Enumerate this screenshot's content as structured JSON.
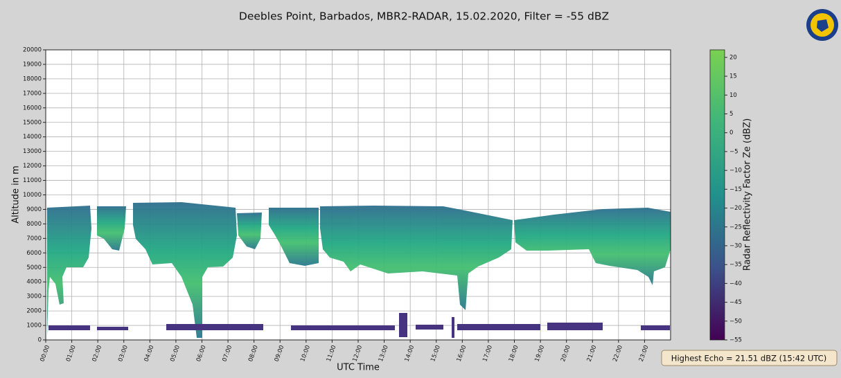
{
  "chart_data": {
    "type": "heatmap",
    "title": "Deebles Point, Barbados, MBR2-RADAR, 15.02.2020, Filter = -55 dBZ",
    "xlabel": "UTC Time",
    "ylabel": "Altitude in m",
    "xlim": [
      0,
      24
    ],
    "xticks": [
      {
        "value": 0,
        "label": "00:00"
      },
      {
        "value": 1,
        "label": "01:00"
      },
      {
        "value": 2,
        "label": "02:00"
      },
      {
        "value": 3,
        "label": "03:00"
      },
      {
        "value": 4,
        "label": "04:00"
      },
      {
        "value": 5,
        "label": "05:00"
      },
      {
        "value": 6,
        "label": "06:00"
      },
      {
        "value": 7,
        "label": "07:00"
      },
      {
        "value": 8,
        "label": "08:00"
      },
      {
        "value": 9,
        "label": "09:00"
      },
      {
        "value": 10,
        "label": "10:00"
      },
      {
        "value": 11,
        "label": "11:00"
      },
      {
        "value": 12,
        "label": "12:00"
      },
      {
        "value": 13,
        "label": "13:00"
      },
      {
        "value": 14,
        "label": "14:00"
      },
      {
        "value": 15,
        "label": "15:00"
      },
      {
        "value": 16,
        "label": "16:00"
      },
      {
        "value": 17,
        "label": "17:00"
      },
      {
        "value": 18,
        "label": "18:00"
      },
      {
        "value": 19,
        "label": "19:00"
      },
      {
        "value": 20,
        "label": "20:00"
      },
      {
        "value": 21,
        "label": "21:00"
      },
      {
        "value": 22,
        "label": "22:00"
      },
      {
        "value": 23,
        "label": "23:00"
      }
    ],
    "ylim": [
      0,
      20000
    ],
    "yticks": [
      0,
      1000,
      2000,
      3000,
      4000,
      5000,
      6000,
      7000,
      8000,
      9000,
      10000,
      11000,
      12000,
      13000,
      14000,
      15000,
      16000,
      17000,
      18000,
      19000,
      20000
    ],
    "grid": true,
    "colorbar_label": "Radar Reflectivity Factor Ze (dBZ)",
    "clim": [
      -55,
      22
    ],
    "cticks": [
      {
        "value": -55,
        "label": "−55"
      },
      {
        "value": -50,
        "label": "−50"
      },
      {
        "value": -45,
        "label": "−45"
      },
      {
        "value": -40,
        "label": "−40"
      },
      {
        "value": -35,
        "label": "−35"
      },
      {
        "value": -30,
        "label": "−30"
      },
      {
        "value": -25,
        "label": "−25"
      },
      {
        "value": -20,
        "label": "−20"
      },
      {
        "value": -15,
        "label": "−15"
      },
      {
        "value": -10,
        "label": "−10"
      },
      {
        "value": -5,
        "label": "−5"
      },
      0,
      5,
      10,
      15,
      20
    ],
    "colors": [
      "#440154",
      "#3b528b",
      "#21918c",
      "#3fb57a",
      "#7ad151"
    ],
    "annotation": "Highest Echo = 21.51 dBZ (15:42 UTC)"
  }
}
